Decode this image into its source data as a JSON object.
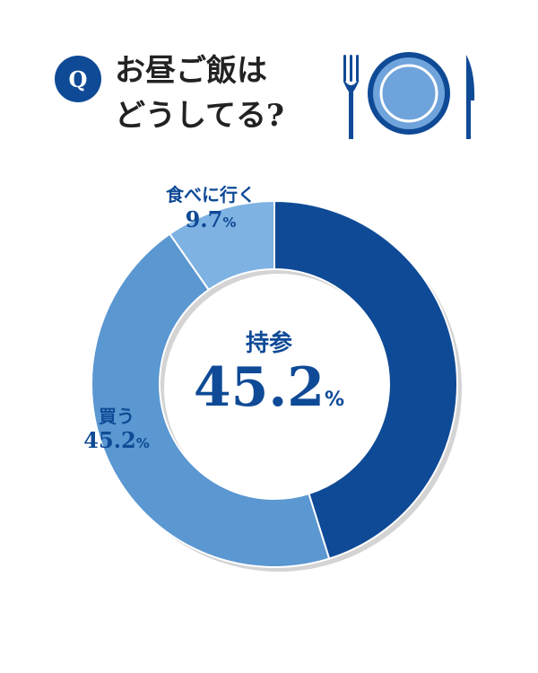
{
  "question": {
    "badge": "Q",
    "title": "お昼ご飯は\nどうしてる?"
  },
  "colors": {
    "brand": "#0f4a96",
    "slice_dark": "#0f4a96",
    "slice_mid": "#5b97d1",
    "slice_light": "#7eb2e2",
    "plate_fill": "#6fa3db"
  },
  "icons": [
    "fork-icon",
    "plate-icon",
    "knife-icon"
  ],
  "chart_data": {
    "type": "pie",
    "donut": true,
    "slices": [
      {
        "label": "持参",
        "value": 45.2,
        "display": "45.2",
        "unit": "%",
        "color": "#0f4a96"
      },
      {
        "label": "買う",
        "value": 45.2,
        "display": "45.2",
        "unit": "%",
        "color": "#5b97d1"
      },
      {
        "label": "食べに行く",
        "value": 9.7,
        "display": "9.7",
        "unit": "%",
        "color": "#7eb2e2"
      }
    ]
  }
}
